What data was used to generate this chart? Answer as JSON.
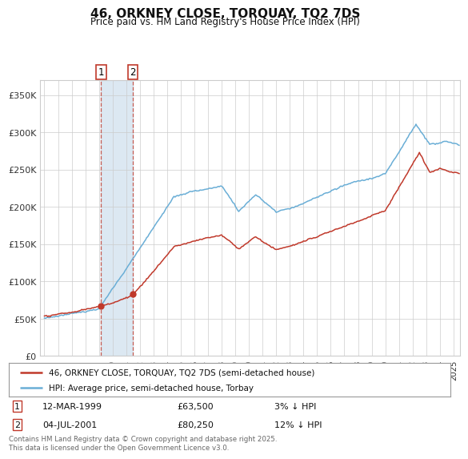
{
  "title": "46, ORKNEY CLOSE, TORQUAY, TQ2 7DS",
  "subtitle": "Price paid vs. HM Land Registry's House Price Index (HPI)",
  "legend_line1": "46, ORKNEY CLOSE, TORQUAY, TQ2 7DS (semi-detached house)",
  "legend_line2": "HPI: Average price, semi-detached house, Torbay",
  "footer": "Contains HM Land Registry data © Crown copyright and database right 2025.\nThis data is licensed under the Open Government Licence v3.0.",
  "purchase1_date": "12-MAR-1999",
  "purchase1_price": 63500,
  "purchase2_date": "04-JUL-2001",
  "purchase2_price": 80250,
  "purchase2_note": "12% ↓ HPI",
  "purchase1_note": "3% ↓ HPI",
  "hpi_color": "#6aaed6",
  "price_color": "#c0392b",
  "marker_box_color": "#c0392b",
  "shading_color": "#d6e4f0",
  "background_color": "#ffffff",
  "grid_color": "#cccccc",
  "ylim": [
    0,
    370000
  ],
  "yticks": [
    0,
    50000,
    100000,
    150000,
    200000,
    250000,
    300000,
    350000
  ],
  "xlim_start": 1994.7,
  "xlim_end": 2025.5
}
